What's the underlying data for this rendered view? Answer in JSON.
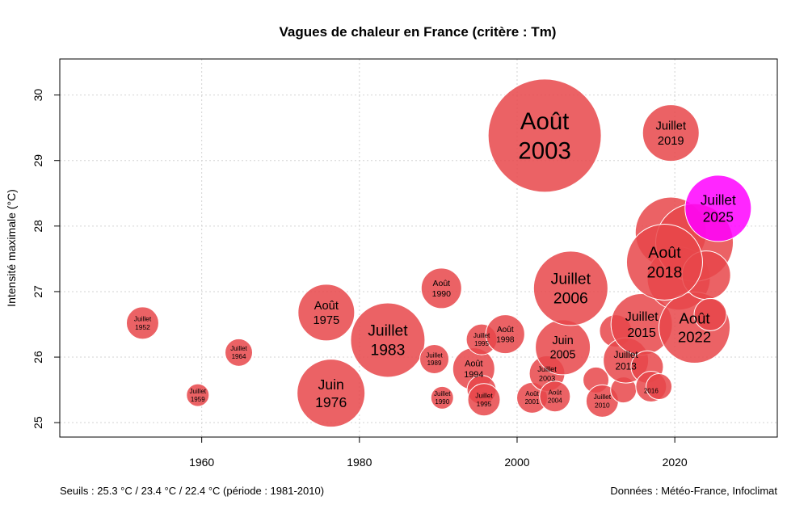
{
  "chart_data": {
    "type": "scatter",
    "title": "Vagues de chaleur en France (critère : Tm)",
    "xlabel": "",
    "ylabel": "Intensité maximale (°C)",
    "xlim": [
      1942,
      2033
    ],
    "ylim": [
      24.78,
      30.55
    ],
    "x_ticks": [
      1960,
      1980,
      2000,
      2020
    ],
    "y_ticks": [
      25,
      26,
      27,
      28,
      29,
      30
    ],
    "grid": true,
    "colors": {
      "bubble": "#e8474a",
      "highlight": "#ff00ff"
    },
    "footer_left": "Seuils : 25.3 °C / 23.4 °C / 22.4 °C (période : 1981-2010)",
    "footer_right": "Données : Météo-France, Infoclimat",
    "series": [
      {
        "points": [
          {
            "x": 1952.5,
            "y": 26.52,
            "size": 1.0,
            "month": "Juillet",
            "year": "1952"
          },
          {
            "x": 1959.5,
            "y": 25.42,
            "size": 0.7,
            "month": "Juillet",
            "year": "1959"
          },
          {
            "x": 1964.7,
            "y": 26.07,
            "size": 0.85,
            "month": "Juillet",
            "year": "1964"
          },
          {
            "x": 1975.8,
            "y": 26.68,
            "size": 1.75,
            "month": "Août",
            "year": "1975"
          },
          {
            "x": 1976.4,
            "y": 25.45,
            "size": 2.1,
            "month": "Juin",
            "year": "1976"
          },
          {
            "x": 1983.6,
            "y": 26.26,
            "size": 2.3,
            "month": "Juillet",
            "year": "1983"
          },
          {
            "x": 1989.5,
            "y": 25.97,
            "size": 0.9,
            "month": "Juillet",
            "year": "1989"
          },
          {
            "x": 1990.4,
            "y": 27.05,
            "size": 1.25,
            "month": "Août",
            "year": "1990"
          },
          {
            "x": 1990.5,
            "y": 25.38,
            "size": 0.7,
            "month": "Juillet",
            "year": "1990"
          },
          {
            "x": 1994.5,
            "y": 25.82,
            "size": 1.3,
            "month": "Août",
            "year": "1994"
          },
          {
            "x": 1995.5,
            "y": 26.27,
            "size": 0.95,
            "month": "Juillet",
            "year": "1995"
          },
          {
            "x": 1995.5,
            "y": 25.5,
            "size": 0.9,
            "month": "",
            "year": ""
          },
          {
            "x": 1995.8,
            "y": 25.35,
            "size": 1.0,
            "month": "Juillet",
            "year": "1995"
          },
          {
            "x": 1998.5,
            "y": 26.35,
            "size": 1.2,
            "month": "Août",
            "year": "1998"
          },
          {
            "x": 2001.9,
            "y": 25.38,
            "size": 0.95,
            "month": "Août",
            "year": "2001"
          },
          {
            "x": 2003.5,
            "y": 29.38,
            "size": 3.5,
            "month": "Août",
            "year": "2003"
          },
          {
            "x": 2003.8,
            "y": 25.75,
            "size": 1.1,
            "month": "Juillet",
            "year": "2003"
          },
          {
            "x": 2004.8,
            "y": 25.4,
            "size": 0.95,
            "month": "Août",
            "year": "2004"
          },
          {
            "x": 2005.8,
            "y": 26.15,
            "size": 1.7,
            "month": "Juin",
            "year": "2005"
          },
          {
            "x": 2006.8,
            "y": 27.05,
            "size": 2.3,
            "month": "Juillet",
            "year": "2006"
          },
          {
            "x": 2010.0,
            "y": 25.65,
            "size": 0.8,
            "month": "",
            "year": ""
          },
          {
            "x": 2010.8,
            "y": 25.33,
            "size": 1.0,
            "month": "Juillet",
            "year": "2010"
          },
          {
            "x": 2012.5,
            "y": 26.4,
            "size": 1.0,
            "month": "",
            "year": ""
          },
          {
            "x": 2013.5,
            "y": 25.5,
            "size": 0.8,
            "month": "",
            "year": ""
          },
          {
            "x": 2013.8,
            "y": 25.95,
            "size": 1.4,
            "month": "Juillet",
            "year": "2013"
          },
          {
            "x": 2015.8,
            "y": 26.5,
            "size": 1.9,
            "month": "Juillet",
            "year": "2015"
          },
          {
            "x": 2016.5,
            "y": 25.85,
            "size": 1.0,
            "month": "",
            "year": ""
          },
          {
            "x": 2017.0,
            "y": 25.55,
            "size": 0.95,
            "month": "",
            "year": "2016"
          },
          {
            "x": 2018.0,
            "y": 25.55,
            "size": 0.8,
            "month": "",
            "year": ""
          },
          {
            "x": 2019.5,
            "y": 29.42,
            "size": 1.75,
            "month": "Juillet",
            "year": "2019"
          },
          {
            "x": 2019.5,
            "y": 27.9,
            "size": 2.2,
            "month": "",
            "year": ""
          },
          {
            "x": 2020.5,
            "y": 27.2,
            "size": 1.95,
            "month": "",
            "year": ""
          },
          {
            "x": 2022.5,
            "y": 26.45,
            "size": 2.2,
            "month": "Août",
            "year": "2022"
          },
          {
            "x": 2022.5,
            "y": 27.75,
            "size": 2.4,
            "month": "",
            "year": ""
          },
          {
            "x": 2024.0,
            "y": 27.25,
            "size": 1.5,
            "month": "",
            "year": ""
          },
          {
            "x": 2024.5,
            "y": 26.65,
            "size": 1.0,
            "month": "",
            "year": ""
          },
          {
            "x": 2018.7,
            "y": 27.45,
            "size": 2.35,
            "month": "Août",
            "year": "2018"
          },
          {
            "x": 2025.5,
            "y": 28.27,
            "size": 2.05,
            "month": "Juillet",
            "year": "2025",
            "highlight": true
          }
        ]
      }
    ]
  }
}
